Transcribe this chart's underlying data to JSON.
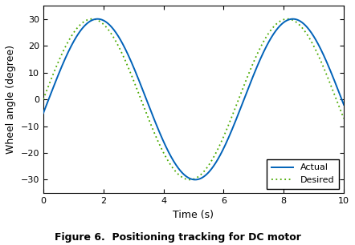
{
  "title": "Figure 6.  Positioning tracking for DC motor",
  "xlabel": "Time (s)",
  "ylabel": "Wheel angle (degree)",
  "xlim": [
    0,
    10
  ],
  "ylim": [
    -35,
    35
  ],
  "yticks": [
    -30,
    -20,
    -10,
    0,
    10,
    20,
    30
  ],
  "xticks": [
    0,
    2,
    4,
    6,
    8,
    10
  ],
  "actual_color": "#0062b8",
  "desired_color": "#4aaa00",
  "amplitude": 30,
  "period": 6.5,
  "actual_lag": 0.18,
  "t_start": 0,
  "t_end": 10,
  "num_points": 2000,
  "legend_actual": "Actual",
  "legend_desired": "Desired",
  "legend_loc": "lower right",
  "background_color": "#ffffff",
  "actual_linewidth": 1.4,
  "desired_linewidth": 1.3,
  "desired_dotsize": 2.0,
  "caption": "Figure 6.  Positioning tracking for DC motor",
  "caption_fontsize": 9
}
